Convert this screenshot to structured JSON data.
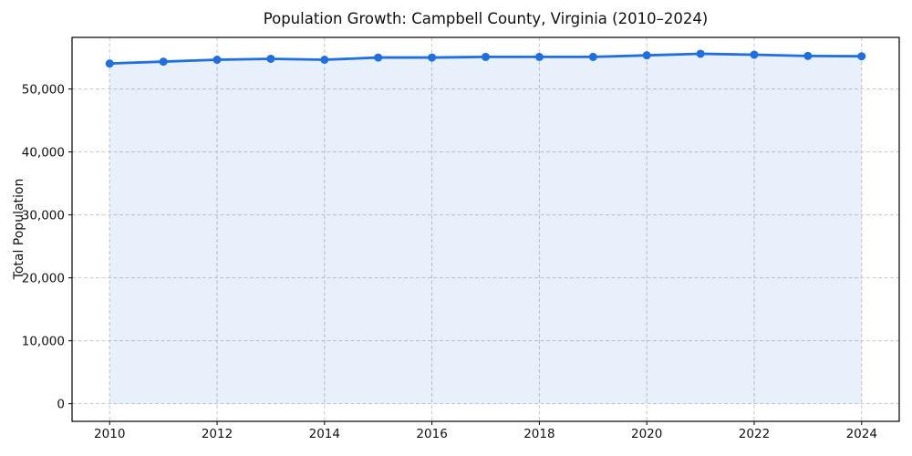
{
  "title": "Population Growth: Campbell County, Virginia (2010–2024)",
  "chart_data": {
    "type": "line",
    "title": "Population Growth: Campbell County, Virginia (2010–2024)",
    "xlabel": "",
    "ylabel": "Total Population",
    "x": [
      2010,
      2011,
      2012,
      2013,
      2014,
      2015,
      2016,
      2017,
      2018,
      2019,
      2020,
      2021,
      2022,
      2023,
      2024
    ],
    "series": [
      {
        "name": "Total Population",
        "values": [
          54050,
          54350,
          54650,
          54800,
          54650,
          55000,
          55000,
          55100,
          55100,
          55100,
          55350,
          55600,
          55450,
          55250,
          55200
        ]
      }
    ],
    "x_ticks": [
      2010,
      2012,
      2014,
      2016,
      2018,
      2020,
      2022,
      2024
    ],
    "x_tick_labels": [
      "2010",
      "2012",
      "2014",
      "2016",
      "2018",
      "2020",
      "2022",
      "2024"
    ],
    "y_ticks": [
      0,
      10000,
      20000,
      30000,
      40000,
      50000
    ],
    "y_tick_labels": [
      "0",
      "10,000",
      "20,000",
      "30,000",
      "40,000",
      "50,000"
    ],
    "xlim": [
      2009.3,
      2024.7
    ],
    "ylim": [
      -2800,
      58200
    ],
    "grid": true,
    "legend": "none",
    "line_color": "#1f6fe0",
    "fill_color": "#1f6fe0",
    "fill_opacity": 0.1,
    "marker": "circle",
    "grid_color": "#c9c9c9",
    "spine_color": "#000000",
    "text_color": "#111111"
  }
}
